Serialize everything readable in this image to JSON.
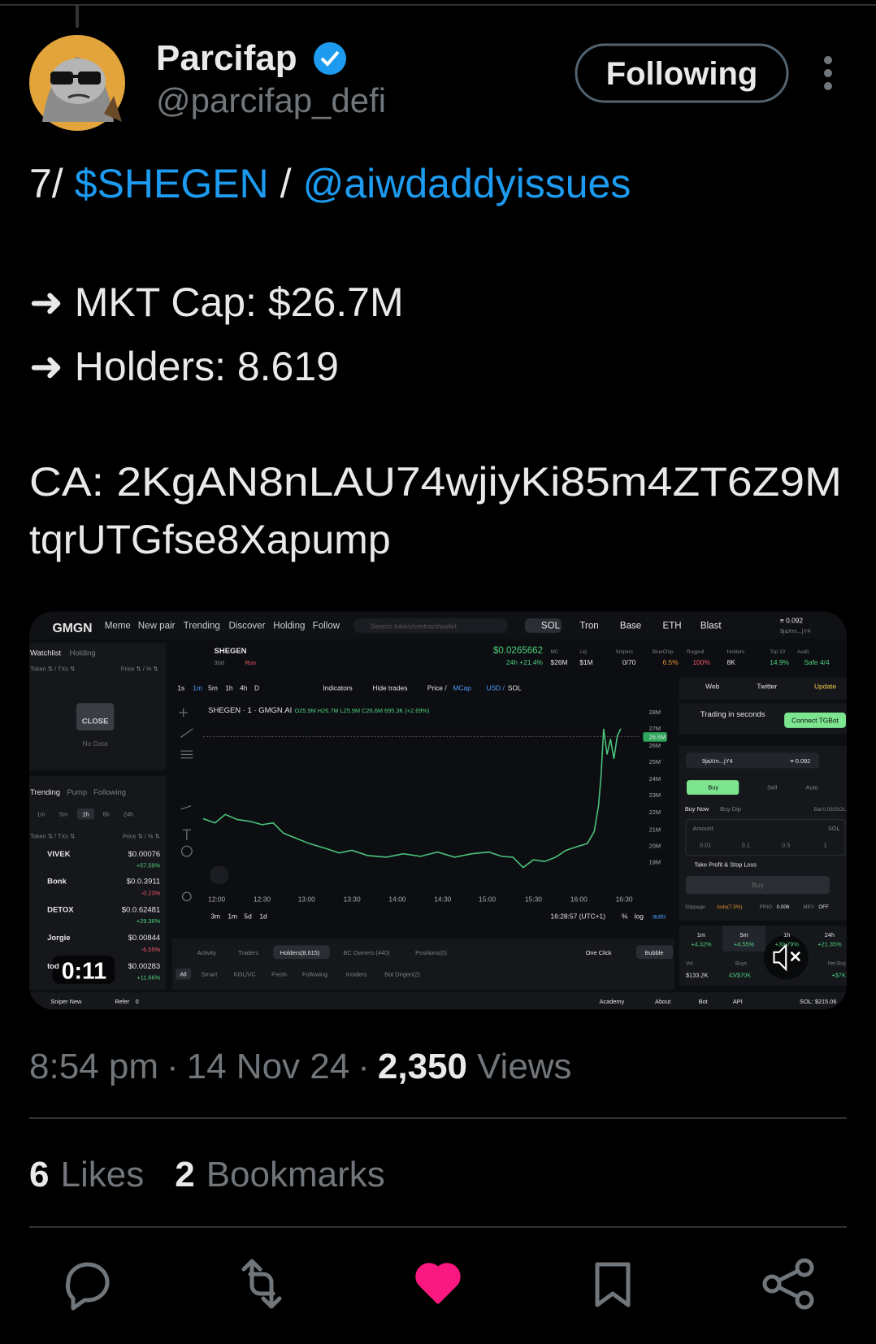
{
  "header": {
    "name": "Parcifap",
    "handle": "@parcifap_defi",
    "follow_button": "Following"
  },
  "tweet": {
    "line1": {
      "prefix": "7/",
      "ticker": "$SHEGEN",
      "separator": "/",
      "mention": "@aiwdaddyissues"
    },
    "lines": [
      "➜ MKT Cap: $26.7M",
      "➜ Holders: 8.619",
      "CA: 2KgAN8nLAU74wjiyKi85m4ZT6Z9M",
      "tqrUTGfse8Xapump"
    ]
  },
  "media": {
    "texts": [
      "GMGN",
      "Meme",
      "New pair",
      "Trending",
      "Discover",
      "Holding",
      "Follow",
      "Search token/contract/wallet",
      "SOL",
      "Tron",
      "Base",
      "ETH",
      "Blast",
      "≡ 0.092",
      "9jaXm...jY4",
      "Watchlist",
      "Holding",
      "Token ⇅ / TXs ⇅",
      "Price ⇅ / % ⇅",
      "CLOSE",
      "No Data",
      "Trending",
      "Pump",
      "Following",
      "1m",
      "5m",
      "1h",
      "6h",
      "24h",
      "Token ⇅ / TXs ⇅",
      "Price ⇅ / % ⇅",
      "VIVEK",
      "$0.00076",
      "+57.59%",
      "Bonk",
      "$0.0.3911",
      "-0.23%",
      "DETOX",
      "$0.0.62481",
      "+29.36%",
      "Jorgie",
      "$0.00844",
      "-6.55%",
      "tod",
      "$0.00283",
      "+11.66%",
      "SHEGEN",
      "30d",
      "Run",
      "$0.0265662",
      "24h +21.4%",
      "MC",
      "$26M",
      "Liq",
      "$1M",
      "Snipers",
      "0/70",
      "BlueChip",
      "6.5%",
      "Rugpull",
      "100%",
      "Holders",
      "8K",
      "Top 10",
      "14.9%",
      "Audit",
      "Safe 4/4",
      "1s",
      "1m",
      "5m",
      "1h",
      "4h",
      "D",
      "Indicators",
      "Hide trades",
      "Price /",
      "MCap",
      "USD /",
      "SOL",
      "Web",
      "Twitter",
      "Update",
      "SHEGEN · 1 · GMGN.AI",
      "O25.9M H26.7M L25.9M C26.6M 695.3K (+2.69%)",
      "28M",
      "27M",
      "26.6M",
      "26M",
      "25M",
      "24M",
      "23M",
      "22M",
      "21M",
      "20M",
      "19M",
      "12:00",
      "12:30",
      "13:00",
      "13:30",
      "14:00",
      "14:30",
      "15:00",
      "15:30",
      "16:00",
      "16:30",
      "3m",
      "1m",
      "5d",
      "1d",
      "16:28:57 (UTC+1)",
      "%",
      "log",
      "auto",
      "Trading in seconds",
      "Connect TGBot",
      "9jaXm...jY4",
      "≡ 0.092",
      "Buy",
      "Sell",
      "Auto",
      "Buy Now",
      "Buy Dip",
      "Bal:0.092SOL",
      "Amount",
      "SOL",
      "0.01",
      "0.1",
      "0.5",
      "1",
      "Take Profit & Stop Loss",
      "Buy",
      "Slippage",
      "Auto(7.5%)",
      "PRIO",
      "0.006",
      "MEV",
      "OFF",
      "1m",
      "+4.32%",
      "5m",
      "+4.55%",
      "1h",
      "+39.79%",
      "24h",
      "+21.35%",
      "Vol",
      "$133.2K",
      "Buys",
      "43/$70K",
      "Net Buy",
      "+$7K",
      "Activity",
      "Traders",
      "Holders(8,615)",
      "BC Owners (440)",
      "Positions(0)",
      "One Click",
      "Bubble",
      "All",
      "Smart",
      "KOL/VC",
      "Fresh",
      "Following",
      "Insiders",
      "Bot Degen(2)",
      "Sniper New",
      "Refer",
      "0",
      "Academy",
      "About",
      "Bot",
      "API",
      "SOL: $215.06",
      "0:11"
    ]
  },
  "meta": {
    "time": "8:54 pm",
    "separator": "·",
    "date": "14 Nov 24",
    "views_count": "2,350",
    "views_label": "Views"
  },
  "stats": {
    "likes_count": "6",
    "likes_label": "Likes",
    "bookmarks_count": "2",
    "bookmarks_label": "Bookmarks"
  }
}
